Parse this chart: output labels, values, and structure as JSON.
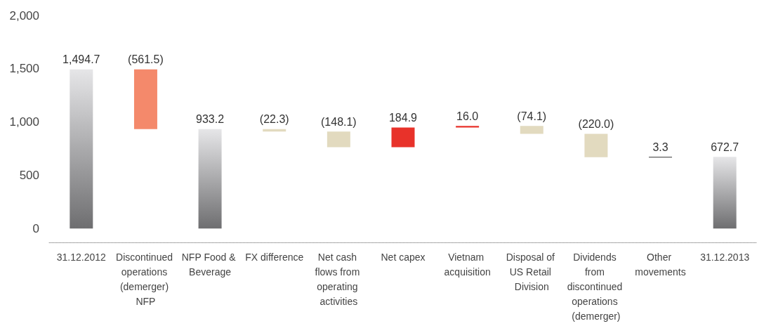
{
  "chart_data": {
    "type": "bar",
    "categories": [
      "31.12.2012",
      "Discontinued operations (demerger) NFP",
      "NFP Food & Beverage",
      "FX difference",
      "Net cash flows from operating activities",
      "Net capex",
      "Vietnam acquisition",
      "Disposal of US Retail Division",
      "Dividends from discontinued operations (demerger)",
      "Other movements",
      "31.12.2013"
    ],
    "values": [
      1494.7,
      -561.5,
      933.2,
      -22.3,
      -148.1,
      184.9,
      16.0,
      -74.1,
      -220.0,
      3.3,
      672.7
    ],
    "base": [
      0,
      1494.7,
      0,
      933.2,
      910.9,
      762.8,
      947.7,
      963.7,
      889.6,
      669.6,
      0
    ],
    "value_labels": [
      "1,494.7",
      "(561.5)",
      "933.2",
      "(22.3)",
      "(148.1)",
      "184.9",
      "16.0",
      "(74.1)",
      "(220.0)",
      "3.3",
      "672.7"
    ],
    "colors": [
      "#6e6e70",
      "#f4896b",
      "#6e6e70",
      "#e2dabf",
      "#e2dabf",
      "#e8322a",
      "#e8322a",
      "#e2dabf",
      "#e2dabf",
      "#333333",
      "#6e6e70"
    ],
    "ylim": [
      -130,
      2000
    ],
    "yticks": [
      0,
      500,
      {
        "value": 1000,
        "label": "1,000"
      },
      {
        "value": 1500,
        "label": "1,500"
      },
      {
        "value": 2000,
        "label": "2,000"
      }
    ],
    "grid": false
  }
}
